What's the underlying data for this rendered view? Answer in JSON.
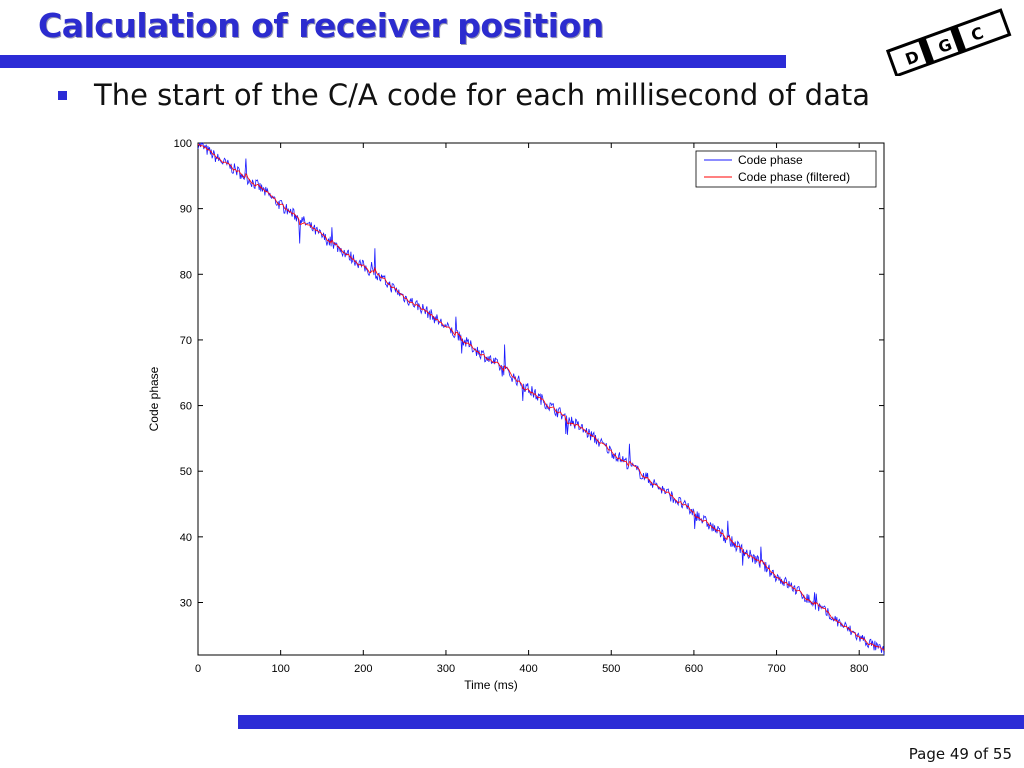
{
  "slide": {
    "title": "Calculation of receiver position",
    "bullet": "The start of the C/A code for each millisecond of data",
    "page": "Page 49 of 55",
    "logo_letters": [
      "D",
      "G",
      "C"
    ]
  },
  "colors": {
    "accent": "#2c2cd6",
    "series_raw": "#1a1aff",
    "series_filtered": "#ff0000"
  },
  "chart_data": {
    "type": "line",
    "title": "",
    "xlabel": "Time (ms)",
    "ylabel": "Code phase",
    "xlim": [
      0,
      830
    ],
    "ylim": [
      22,
      100
    ],
    "xticks": [
      0,
      100,
      200,
      300,
      400,
      500,
      600,
      700,
      800
    ],
    "yticks": [
      30,
      40,
      50,
      60,
      70,
      80,
      90,
      100
    ],
    "legend": "top-right",
    "grid": false,
    "series": [
      {
        "name": "Code phase",
        "color": "#1a1aff",
        "trend": {
          "start": [
            0,
            100
          ],
          "end": [
            830,
            22.5
          ]
        },
        "x": [
          0,
          25,
          50,
          75,
          100,
          125,
          150,
          175,
          200,
          225,
          250,
          275,
          300,
          325,
          350,
          375,
          400,
          425,
          450,
          475,
          500,
          525,
          550,
          575,
          600,
          625,
          650,
          675,
          700,
          725,
          750,
          775,
          800,
          830
        ],
        "values": [
          100,
          97.5,
          95.5,
          93.2,
          90.5,
          88.3,
          85.8,
          83.6,
          81.2,
          79,
          76.5,
          74.5,
          72,
          69.5,
          67.3,
          65,
          62.5,
          60,
          57.8,
          55.5,
          53,
          50.7,
          48.3,
          46,
          43.6,
          41.2,
          38.8,
          36.5,
          34,
          31.8,
          29.4,
          27,
          24.7,
          22.5
        ]
      },
      {
        "name": "Code phase (filtered)",
        "color": "#ff0000",
        "trend": {
          "start": [
            0,
            100
          ],
          "end": [
            830,
            22.5
          ]
        },
        "x": [
          0,
          25,
          50,
          75,
          100,
          125,
          150,
          175,
          200,
          225,
          250,
          275,
          300,
          325,
          350,
          375,
          400,
          425,
          450,
          475,
          500,
          525,
          550,
          575,
          600,
          625,
          650,
          675,
          700,
          725,
          750,
          775,
          800,
          830
        ],
        "values": [
          100,
          97.5,
          95.5,
          93.2,
          90.5,
          88.3,
          85.8,
          83.6,
          81.2,
          79,
          76.5,
          74.5,
          72,
          69.5,
          67.3,
          65,
          62.5,
          60,
          57.8,
          55.5,
          53,
          50.7,
          48.3,
          46,
          43.6,
          41.2,
          38.8,
          36.5,
          34,
          31.8,
          29.4,
          27,
          24.7,
          22.5
        ]
      }
    ]
  }
}
